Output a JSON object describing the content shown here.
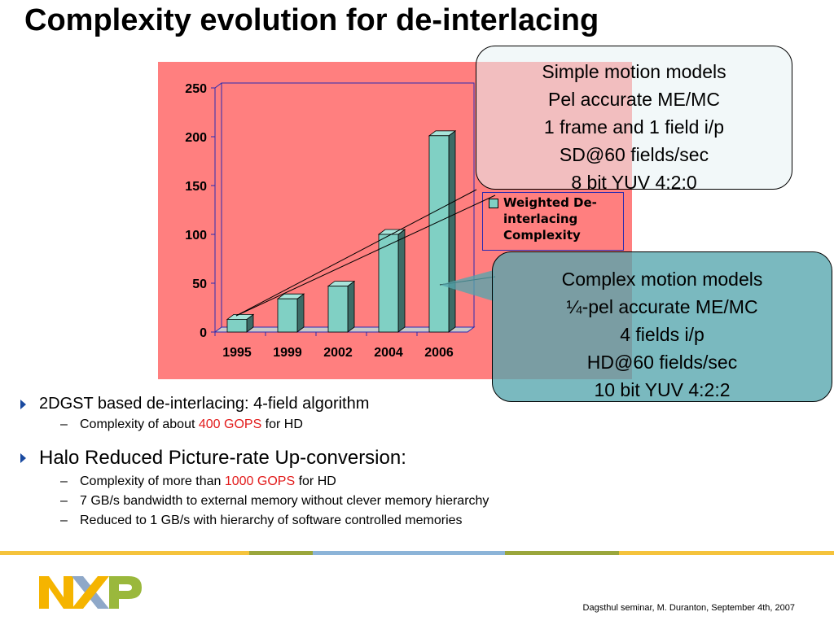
{
  "slide": {
    "title": "Complexity evolution for de-interlacing",
    "footer": "Dagsthul seminar, M. Duranton, September 4th, 2007",
    "logo_letters": [
      "N",
      "X",
      "P"
    ]
  },
  "chart_data": {
    "type": "bar",
    "style": "3d-column",
    "categories": [
      "1995",
      "1999",
      "2002",
      "2004",
      "2006"
    ],
    "series": [
      {
        "name": "Weighted De-interlacing Complexity",
        "values": [
          13,
          34,
          47,
          100,
          201
        ]
      }
    ],
    "ylim": [
      0,
      250
    ],
    "yticks": [
      "0",
      "50",
      "100",
      "150",
      "200",
      "250"
    ],
    "legend": "right",
    "grid": false,
    "colors": {
      "bar_front": "#80d0c4",
      "bar_side": "#3d6b66",
      "bar_top": "#a8e4da",
      "plot_bg": "#ff7f7f",
      "axis": "#2b2bb0"
    }
  },
  "callouts": {
    "top": [
      "Simple motion models",
      "Pel accurate ME/MC",
      "1 frame and 1 field i/p",
      "SD@60 fields/sec",
      "8 bit YUV 4:2:0"
    ],
    "bottom": [
      "Complex motion models",
      "¼-pel accurate ME/MC",
      "4 fields i/p",
      "HD@60 fields/sec",
      "10 bit YUV 4:2:2"
    ]
  },
  "bullets": [
    {
      "text": "2DGST based de-interlacing: 4-field algorithm",
      "subs": [
        {
          "pre": "Complexity of about ",
          "highlight": "400 GOPS",
          "post": " for HD"
        }
      ]
    },
    {
      "text": "Halo Reduced Picture-rate Up-conversion:",
      "subs": [
        {
          "pre": "Complexity of more than ",
          "highlight": "1000 GOPS",
          "post": " for HD"
        },
        {
          "pre": "7 GB/s bandwidth to external memory without clever memory hierarchy",
          "highlight": "",
          "post": ""
        },
        {
          "pre": "Reduced to 1 GB/s with hierarchy of software controlled memories",
          "highlight": "",
          "post": ""
        }
      ]
    }
  ],
  "colors": {
    "highlight": "#e21b1b",
    "stripe": [
      "#f5c33c",
      "#9aa63c",
      "#8cb4d8",
      "#9aa63c",
      "#f5c33c"
    ],
    "logo": [
      "#f5b400",
      "#8fa8c8",
      "#9ab83c"
    ]
  }
}
